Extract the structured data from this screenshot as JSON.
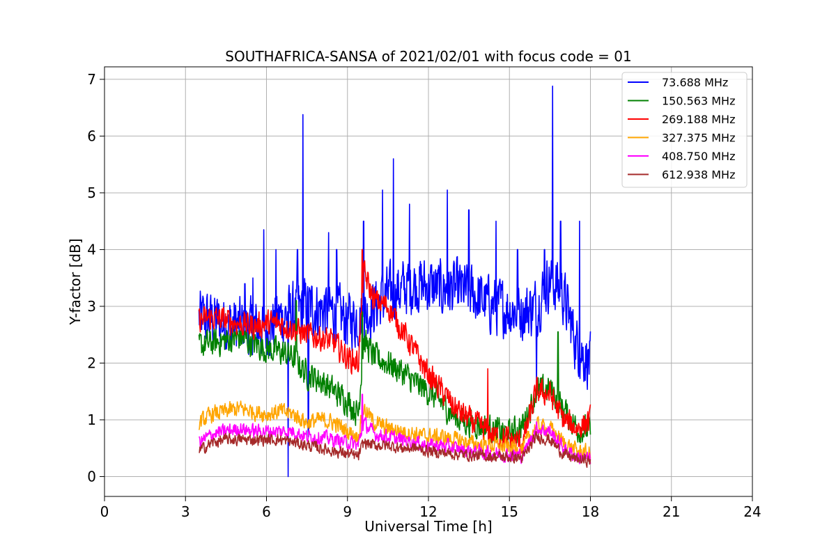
{
  "chart_data": {
    "type": "line",
    "title": "SOUTHAFRICA-SANSA of 2021/02/01 with focus code = 01",
    "xlabel": "Universal Time [h]",
    "ylabel": "Y-factor [dB]",
    "xlim": [
      0,
      24
    ],
    "ylim": [
      -0.35,
      7.22
    ],
    "xticks": [
      0,
      3,
      6,
      9,
      12,
      15,
      18,
      21,
      24
    ],
    "yticks": [
      0,
      1,
      2,
      3,
      4,
      5,
      6,
      7
    ],
    "grid": true,
    "legend_position": "top-right",
    "series": [
      {
        "name": " 73.688 MHz",
        "color": "#0000ff",
        "noise": 0.45,
        "x": [
          3.5,
          4.0,
          4.5,
          5.0,
          5.5,
          6.0,
          6.5,
          7.0,
          7.5,
          8.0,
          8.5,
          9.0,
          9.5,
          10.0,
          10.5,
          11.0,
          11.5,
          12.0,
          12.5,
          13.0,
          13.5,
          14.0,
          14.5,
          15.0,
          15.5,
          16.0,
          16.5,
          17.0,
          17.5,
          18.0
        ],
        "y": [
          2.8,
          2.75,
          2.7,
          2.65,
          2.6,
          2.6,
          2.8,
          2.9,
          3.0,
          2.95,
          2.9,
          2.75,
          2.8,
          3.0,
          3.2,
          3.3,
          3.4,
          3.35,
          3.3,
          3.3,
          3.25,
          3.1,
          3.0,
          2.95,
          2.9,
          3.0,
          3.5,
          3.2,
          2.3,
          2.0
        ],
        "spikes": [
          [
            5.2,
            3.4
          ],
          [
            5.5,
            3.5
          ],
          [
            5.9,
            4.35
          ],
          [
            6.35,
            4.0
          ],
          [
            6.8,
            0.0
          ],
          [
            7.15,
            4.0
          ],
          [
            7.35,
            6.38
          ],
          [
            7.55,
            0.7
          ],
          [
            8.3,
            4.3
          ],
          [
            8.6,
            4.0
          ],
          [
            9.6,
            4.5
          ],
          [
            10.3,
            5.05
          ],
          [
            10.7,
            5.6
          ],
          [
            11.3,
            4.8
          ],
          [
            12.7,
            5.05
          ],
          [
            13.5,
            4.7
          ],
          [
            14.5,
            4.5
          ],
          [
            15.3,
            4.0
          ],
          [
            16.0,
            1.5
          ],
          [
            16.3,
            4.0
          ],
          [
            16.6,
            6.88
          ],
          [
            16.9,
            4.5
          ],
          [
            17.6,
            4.5
          ]
        ]
      },
      {
        "name": "150.563 MHz",
        "color": "#008000",
        "noise": 0.22,
        "x": [
          3.5,
          4.0,
          4.5,
          5.0,
          5.5,
          6.0,
          6.5,
          7.0,
          7.5,
          8.0,
          8.5,
          9.0,
          9.4,
          9.6,
          10.0,
          10.5,
          11.0,
          11.5,
          12.0,
          12.5,
          13.0,
          13.5,
          14.0,
          14.5,
          15.0,
          15.5,
          16.0,
          16.5,
          17.0,
          17.5,
          18.0
        ],
        "y": [
          2.3,
          2.35,
          2.4,
          2.45,
          2.35,
          2.25,
          2.2,
          2.1,
          1.8,
          1.7,
          1.5,
          1.35,
          1.1,
          2.4,
          2.1,
          2.0,
          1.85,
          1.65,
          1.5,
          1.3,
          1.05,
          0.95,
          0.9,
          0.8,
          0.75,
          0.9,
          1.5,
          1.55,
          1.2,
          0.85,
          0.8
        ],
        "spikes": [
          [
            7.1,
            3.1
          ],
          [
            9.55,
            2.9
          ],
          [
            16.8,
            2.55
          ]
        ]
      },
      {
        "name": "269.188 MHz",
        "color": "#ff0000",
        "noise": 0.2,
        "x": [
          3.5,
          4.0,
          4.5,
          5.0,
          5.5,
          6.0,
          6.5,
          7.0,
          7.5,
          8.0,
          8.5,
          9.0,
          9.4,
          9.6,
          10.0,
          10.5,
          11.0,
          11.5,
          12.0,
          12.5,
          13.0,
          13.5,
          14.0,
          14.5,
          15.0,
          15.5,
          16.0,
          16.5,
          17.0,
          17.5,
          18.0
        ],
        "y": [
          2.75,
          2.8,
          2.75,
          2.7,
          2.65,
          2.7,
          2.7,
          2.6,
          2.5,
          2.45,
          2.35,
          2.1,
          2.0,
          3.6,
          3.1,
          3.0,
          2.6,
          2.2,
          1.8,
          1.5,
          1.2,
          1.0,
          0.85,
          0.7,
          0.65,
          0.6,
          1.5,
          1.45,
          1.0,
          0.85,
          1.0
        ],
        "spikes": [
          [
            9.55,
            4.0
          ],
          [
            14.2,
            1.9
          ]
        ]
      },
      {
        "name": "327.375 MHz",
        "color": "#ffa500",
        "noise": 0.13,
        "x": [
          3.5,
          4.0,
          4.5,
          5.0,
          5.5,
          6.0,
          6.5,
          7.0,
          7.5,
          8.0,
          8.5,
          9.0,
          9.4,
          9.6,
          10.0,
          10.5,
          11.0,
          11.5,
          12.0,
          12.5,
          13.0,
          13.5,
          14.0,
          14.5,
          15.0,
          15.5,
          16.0,
          16.5,
          17.0,
          17.5,
          18.0
        ],
        "y": [
          0.95,
          1.1,
          1.15,
          1.2,
          1.15,
          1.1,
          1.15,
          1.1,
          0.95,
          1.0,
          0.95,
          0.8,
          0.7,
          1.2,
          0.95,
          0.85,
          0.8,
          0.75,
          0.7,
          0.7,
          0.65,
          0.6,
          0.55,
          0.55,
          0.5,
          0.5,
          0.9,
          0.85,
          0.6,
          0.45,
          0.4
        ],
        "spikes": []
      },
      {
        "name": "408.750 MHz",
        "color": "#ff00ff",
        "noise": 0.11,
        "x": [
          3.5,
          4.0,
          4.5,
          5.0,
          5.5,
          6.0,
          6.5,
          7.0,
          7.5,
          8.0,
          8.5,
          9.0,
          9.4,
          9.6,
          10.0,
          10.5,
          11.0,
          11.5,
          12.0,
          12.5,
          13.0,
          13.5,
          14.0,
          14.5,
          15.0,
          15.5,
          16.0,
          16.5,
          17.0,
          17.5,
          18.0
        ],
        "y": [
          0.6,
          0.75,
          0.8,
          0.85,
          0.8,
          0.8,
          0.8,
          0.8,
          0.7,
          0.7,
          0.65,
          0.6,
          0.55,
          0.95,
          0.75,
          0.7,
          0.65,
          0.6,
          0.55,
          0.55,
          0.5,
          0.45,
          0.42,
          0.4,
          0.38,
          0.38,
          0.85,
          0.8,
          0.5,
          0.35,
          0.3
        ],
        "spikes": [
          [
            9.55,
            1.45
          ]
        ]
      },
      {
        "name": "612.938 MHz",
        "color": "#a52a2a",
        "noise": 0.09,
        "x": [
          3.5,
          4.0,
          4.5,
          5.0,
          5.5,
          6.0,
          6.5,
          7.0,
          7.5,
          8.0,
          8.5,
          9.0,
          9.4,
          9.6,
          10.0,
          10.5,
          11.0,
          11.5,
          12.0,
          12.5,
          13.0,
          13.5,
          14.0,
          14.5,
          15.0,
          15.5,
          16.0,
          16.5,
          17.0,
          17.5,
          18.0
        ],
        "y": [
          0.45,
          0.6,
          0.65,
          0.65,
          0.65,
          0.65,
          0.65,
          0.6,
          0.55,
          0.5,
          0.45,
          0.4,
          0.35,
          0.6,
          0.55,
          0.55,
          0.5,
          0.5,
          0.45,
          0.42,
          0.4,
          0.38,
          0.36,
          0.35,
          0.34,
          0.33,
          0.7,
          0.65,
          0.4,
          0.3,
          0.28
        ],
        "spikes": []
      }
    ]
  }
}
